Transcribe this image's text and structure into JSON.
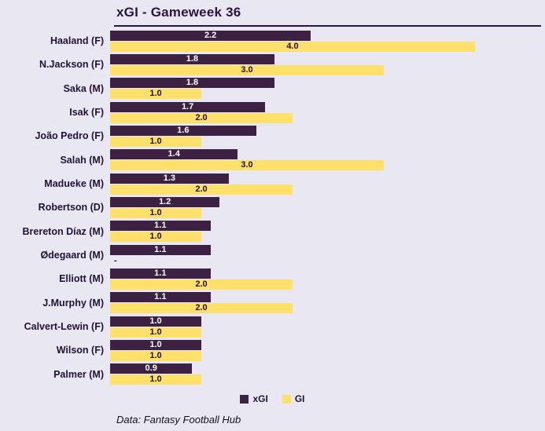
{
  "chart_data": {
    "type": "bar",
    "orientation": "horizontal",
    "title": "xGI - Gameweek 36",
    "footer": "Data: Fantasy Football Hub",
    "xlim": [
      0,
      4.0
    ],
    "grid": false,
    "legend_position": "bottom-center",
    "categories": [
      "Haaland (F)",
      "N.Jackson (F)",
      "Saka (M)",
      "Isak (F)",
      "João Pedro (F)",
      "Salah (M)",
      "Madueke (M)",
      "Robertson (D)",
      "Brereton Díaz (M)",
      "Ødegaard (M)",
      "Elliott (M)",
      "J.Murphy (M)",
      "Calvert-Lewin (F)",
      "Wilson (F)",
      "Palmer (M)"
    ],
    "series": [
      {
        "name": "xGI",
        "color": "#3c2143",
        "values": [
          2.2,
          1.8,
          1.8,
          1.7,
          1.6,
          1.4,
          1.3,
          1.2,
          1.1,
          1.1,
          1.1,
          1.1,
          1.0,
          1.0,
          0.9
        ],
        "labels": [
          "2.2",
          "1.8",
          "1.8",
          "1.7",
          "1.6",
          "1.4",
          "1.3",
          "1.2",
          "1.1",
          "1.1",
          "1.1",
          "1.1",
          "1.0",
          "1.0",
          "0.9"
        ]
      },
      {
        "name": "GI",
        "color": "#ffe06b",
        "values": [
          4.0,
          3.0,
          1.0,
          2.0,
          1.0,
          3.0,
          2.0,
          1.0,
          1.0,
          null,
          2.0,
          2.0,
          1.0,
          1.0,
          1.0
        ],
        "labels": [
          "4.0",
          "3.0",
          "1.0",
          "2.0",
          "1.0",
          "3.0",
          "2.0",
          "1.0",
          "1.0",
          "-",
          "2.0",
          "2.0",
          "1.0",
          "1.0",
          "1.0"
        ]
      }
    ]
  }
}
